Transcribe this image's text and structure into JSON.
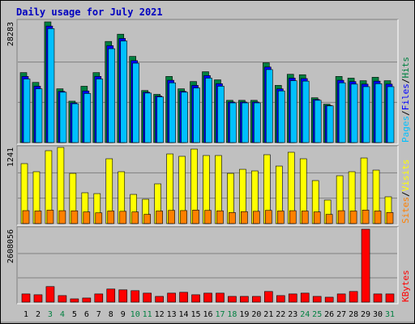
{
  "chart_data": [
    {
      "type": "bar",
      "title": "Daily usage for July 2021",
      "separator": "/",
      "ylim": [
        0,
        28283
      ],
      "yticks": [
        28283
      ],
      "grid": true,
      "series": [
        {
          "name": "Hits",
          "color": "#008040",
          "values": [
            16400,
            14100,
            28283,
            12600,
            9700,
            13200,
            16400,
            23700,
            25400,
            20200,
            12200,
            11300,
            15500,
            12600,
            14300,
            16600,
            14700,
            9900,
            9900,
            9900,
            18700,
            13400,
            16000,
            15900,
            10500,
            9000,
            15500,
            15100,
            14500,
            15300,
            14500
          ]
        },
        {
          "name": "Files",
          "color": "#0000FF",
          "values": [
            15500,
            13200,
            27300,
            12000,
            9300,
            12100,
            15500,
            22700,
            24400,
            19200,
            11800,
            10900,
            14600,
            12000,
            13400,
            15700,
            13800,
            9500,
            9500,
            9500,
            17700,
            12600,
            15100,
            15000,
            10100,
            8700,
            14600,
            14300,
            13700,
            14400,
            13700
          ]
        },
        {
          "name": "Pages",
          "color": "#00C0FF",
          "values": [
            14900,
            12600,
            26700,
            11800,
            9100,
            11500,
            14900,
            22000,
            23800,
            18600,
            11600,
            10700,
            14000,
            11800,
            12800,
            15100,
            13200,
            9300,
            9300,
            9300,
            17100,
            12100,
            14500,
            14400,
            9900,
            8600,
            14000,
            13700,
            13100,
            13800,
            13100
          ]
        }
      ]
    },
    {
      "type": "bar",
      "separator": "/",
      "ylim": [
        0,
        1241
      ],
      "yticks": [
        1241
      ],
      "grid": true,
      "series": [
        {
          "name": "Visits",
          "color": "#FFFF00",
          "values": [
            977,
            845,
            1188,
            1241,
            818,
            502,
            488,
            1056,
            845,
            475,
            396,
            647,
            1135,
            1096,
            1214,
            1109,
            1109,
            818,
            884,
            858,
            1122,
            937,
            1162,
            1056,
            700,
            383,
            779,
            845,
            1069,
            871,
            436
          ]
        },
        {
          "name": "Sites",
          "color": "#FF8000",
          "values": [
            211,
            205,
            218,
            210,
            208,
            190,
            175,
            205,
            200,
            190,
            150,
            205,
            215,
            212,
            220,
            215,
            208,
            180,
            195,
            200,
            215,
            205,
            210,
            205,
            190,
            150,
            210,
            205,
            220,
            205,
            180
          ]
        }
      ]
    },
    {
      "type": "bar",
      "ylim": [
        0,
        2608056
      ],
      "yticks": [
        2608056
      ],
      "grid": true,
      "categories": [
        "1",
        "2",
        "3",
        "4",
        "5",
        "6",
        "7",
        "8",
        "9",
        "10",
        "11",
        "12",
        "13",
        "14",
        "15",
        "16",
        "17",
        "18",
        "19",
        "20",
        "21",
        "22",
        "23",
        "24",
        "25",
        "26",
        "27",
        "28",
        "29",
        "30",
        "31"
      ],
      "category_colors": [
        "#000000",
        "#000000",
        "#008040",
        "#008040",
        "#000000",
        "#000000",
        "#000000",
        "#000000",
        "#000000",
        "#008040",
        "#008040",
        "#000000",
        "#000000",
        "#000000",
        "#000000",
        "#000000",
        "#008040",
        "#008040",
        "#000000",
        "#000000",
        "#000000",
        "#000000",
        "#000000",
        "#008040",
        "#008040",
        "#000000",
        "#000000",
        "#000000",
        "#000000",
        "#000000",
        "#008040"
      ],
      "series": [
        {
          "name": "KBytes",
          "color": "#FF0000",
          "values": [
            293000,
            264000,
            557000,
            234000,
            117000,
            147000,
            293000,
            469000,
            440000,
            410000,
            322000,
            205000,
            322000,
            352000,
            264000,
            322000,
            322000,
            205000,
            205000,
            205000,
            381000,
            234000,
            293000,
            322000,
            205000,
            176000,
            293000,
            381000,
            2608056,
            293000,
            293000
          ]
        }
      ]
    }
  ]
}
